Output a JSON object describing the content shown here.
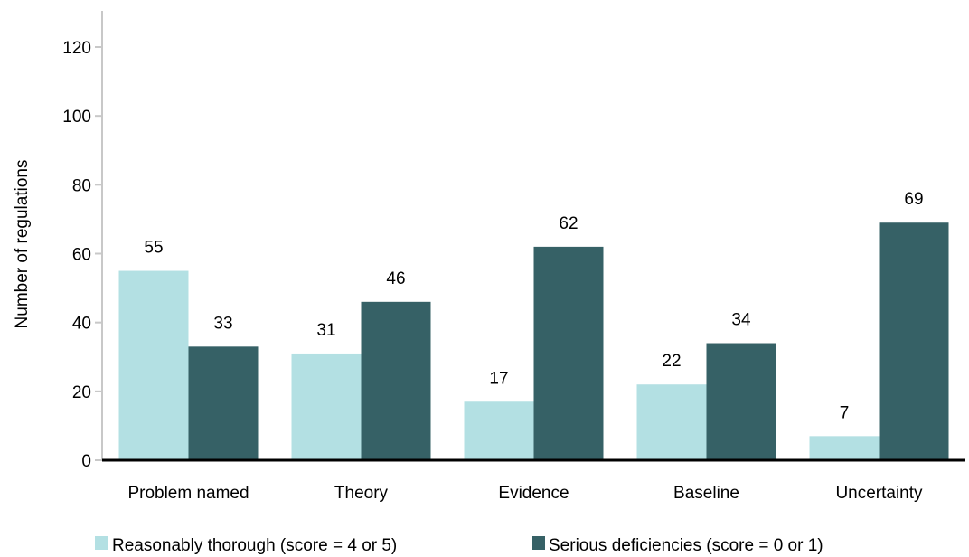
{
  "chart_data": {
    "type": "bar",
    "title": "",
    "xlabel": "",
    "ylabel": "Number of regulations",
    "ylim": [
      0,
      120
    ],
    "yticks": [
      0,
      20,
      40,
      60,
      80,
      100,
      120
    ],
    "categories": [
      "Problem named",
      "Theory",
      "Evidence",
      "Baseline",
      "Uncertainty"
    ],
    "series": [
      {
        "name": "Reasonably thorough (score = 4 or 5)",
        "color": "#b3e0e3",
        "values": [
          55,
          31,
          17,
          22,
          7
        ]
      },
      {
        "name": "Serious deficiencies  (score = 0 or 1)",
        "color": "#366166",
        "values": [
          33,
          46,
          62,
          34,
          69
        ]
      }
    ],
    "grid": false,
    "legend_position": "bottom",
    "data_labels": true
  }
}
